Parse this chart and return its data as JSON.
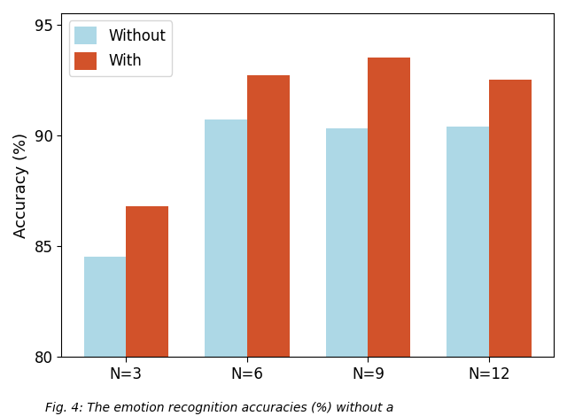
{
  "categories": [
    "N=3",
    "N=6",
    "N=9",
    "N=12"
  ],
  "without_values": [
    84.5,
    90.7,
    90.3,
    90.4
  ],
  "with_values": [
    86.8,
    92.7,
    93.5,
    92.5
  ],
  "without_color": "#add8e6",
  "with_color": "#d2522a",
  "without_label": "Without",
  "with_label": "With",
  "ylabel": "Accuracy (%)",
  "ylim": [
    80,
    95.5
  ],
  "yticks": [
    80,
    85,
    90,
    95
  ],
  "bar_width": 0.35,
  "legend_loc": "upper left",
  "figsize": [
    6.4,
    4.7
  ],
  "dpi": 100,
  "caption": "Fig. 4: The emotion recognition accuracies (%) without a"
}
